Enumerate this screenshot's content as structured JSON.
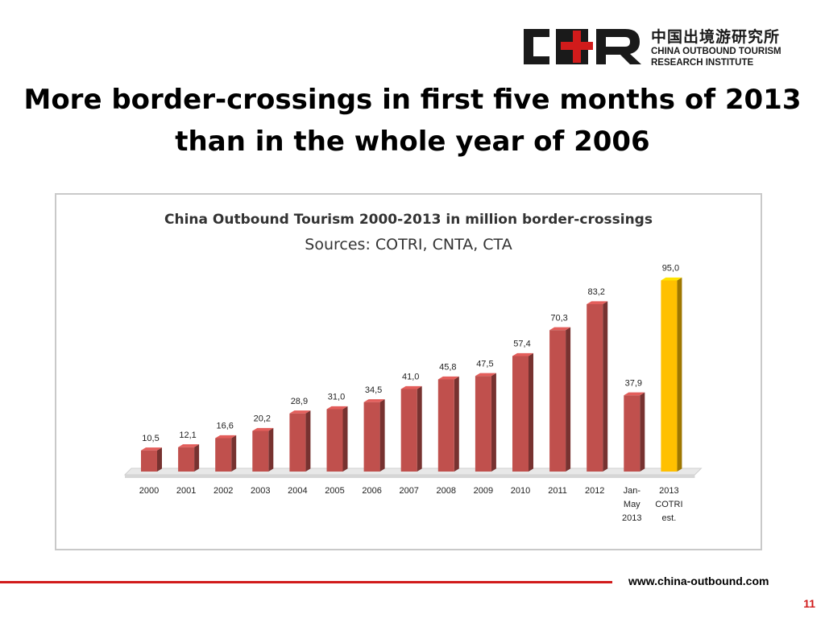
{
  "logo": {
    "chinese_name": "中国出境游研究所",
    "english_line1": "CHINA OUTBOUND TOURISM",
    "english_line2": "RESEARCH INSTITUTE",
    "colors": {
      "dark": "#1a1a1a",
      "red": "#d11b1b"
    }
  },
  "slide": {
    "title": "More border-crossings in first five months of 2013 than in the whole year of 2006",
    "footer_url": "www.china-outbound.com",
    "page_number": "11"
  },
  "chart_data": {
    "type": "bar",
    "title": "China Outbound Tourism 2000-2013  in million border-crossings",
    "subtitle": "Sources: COTRI, CNTA, CTA",
    "categories": [
      [
        "2000"
      ],
      [
        "2001"
      ],
      [
        "2002"
      ],
      [
        "2003"
      ],
      [
        "2004"
      ],
      [
        "2005"
      ],
      [
        "2006"
      ],
      [
        "2007"
      ],
      [
        "2008"
      ],
      [
        "2009"
      ],
      [
        "2010"
      ],
      [
        "2011"
      ],
      [
        "2012"
      ],
      [
        "Jan-",
        "May",
        "2013"
      ],
      [
        "2013",
        "COTRI",
        "est."
      ]
    ],
    "values": [
      10.5,
      12.1,
      16.6,
      20.2,
      28.9,
      31.0,
      34.5,
      41.0,
      45.8,
      47.5,
      57.4,
      70.3,
      83.2,
      37.9,
      95.0
    ],
    "value_labels": [
      "10,5",
      "12,1",
      "16,6",
      "20,2",
      "28,9",
      "31,0",
      "34,5",
      "41,0",
      "45,8",
      "47,5",
      "57,4",
      "70,3",
      "83,2",
      "37,9",
      "95,0"
    ],
    "highlight_index": 14,
    "ylim": [
      0,
      100
    ],
    "grid": false,
    "colors": {
      "bar": "#c0504d",
      "highlight": "#ffc000"
    }
  }
}
